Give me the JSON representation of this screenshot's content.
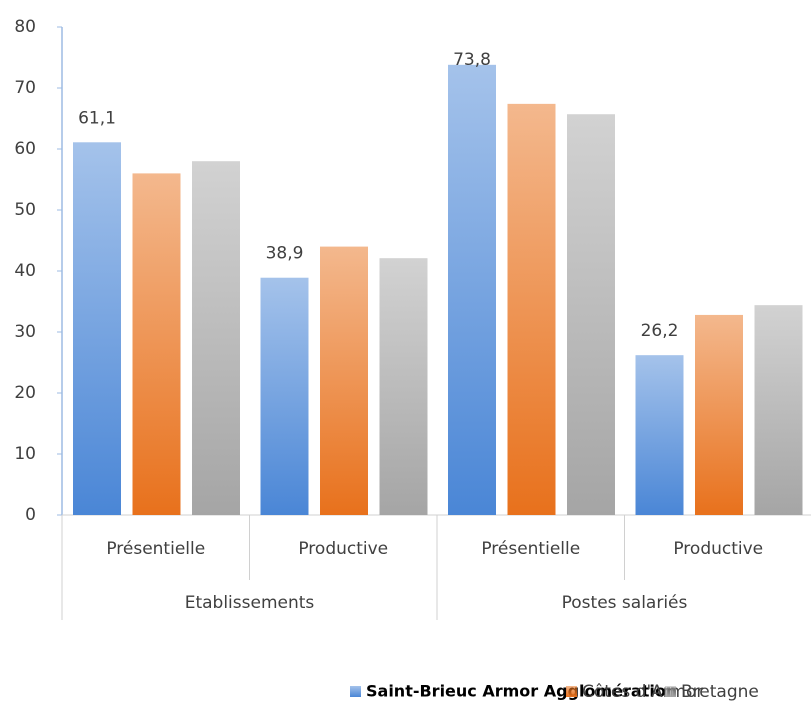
{
  "chart_data": {
    "type": "bar",
    "categories": [
      "Présentielle",
      "Productive",
      "Présentielle",
      "Productive"
    ],
    "category_groups": [
      "Etablissements",
      "Postes salariés"
    ],
    "series": [
      {
        "name": "Saint-Brieuc Armor Agglomération",
        "color": "#4a86d6",
        "values": [
          61.1,
          38.9,
          73.8,
          26.2
        ],
        "value_labels": [
          "61,1",
          "38,9",
          "73,8",
          "26,2"
        ]
      },
      {
        "name": "Côtes d'Armor",
        "color": "#e8711c",
        "values": [
          56,
          44,
          67.4,
          32.8
        ]
      },
      {
        "name": "Bretagne",
        "color": "#a5a5a5",
        "values": [
          58,
          42.1,
          65.7,
          34.4
        ]
      }
    ],
    "ylim": [
      0,
      80
    ],
    "yticks": [
      0,
      10,
      20,
      30,
      40,
      50,
      60,
      70,
      80
    ],
    "grid": false,
    "legend": "bottom"
  }
}
